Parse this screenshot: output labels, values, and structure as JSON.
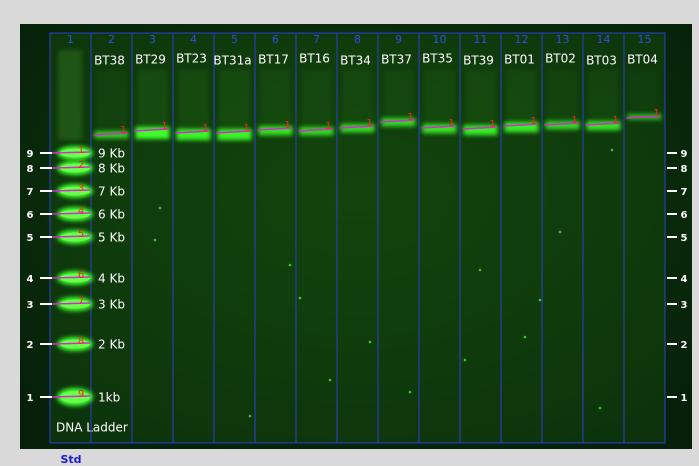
{
  "ladder": {
    "number": "1",
    "label": "DNA Ladder",
    "std": "Std",
    "bands": [
      {
        "id": "1",
        "label": "9 Kb"
      },
      {
        "id": "2",
        "label": "8 Kb"
      },
      {
        "id": "3",
        "label": "7 Kb"
      },
      {
        "id": "4",
        "label": "6 Kb"
      },
      {
        "id": "5",
        "label": "5 Kb"
      },
      {
        "id": "6",
        "label": "4 Kb"
      },
      {
        "id": "7",
        "label": "3 Kb"
      },
      {
        "id": "8",
        "label": "2 Kb"
      },
      {
        "id": "9",
        "label": "1kb"
      }
    ]
  },
  "markers": [
    "9",
    "8",
    "7",
    "6",
    "5",
    "4",
    "3",
    "2",
    "1"
  ],
  "lanes": [
    {
      "number": "2",
      "name": "BT38",
      "band": "1"
    },
    {
      "number": "3",
      "name": "BT29",
      "band": "1"
    },
    {
      "number": "4",
      "name": "BT23",
      "band": "1"
    },
    {
      "number": "5",
      "name": "BT31a",
      "band": "1"
    },
    {
      "number": "6",
      "name": "BT17",
      "band": "1"
    },
    {
      "number": "7",
      "name": "BT16",
      "band": "1"
    },
    {
      "number": "8",
      "name": "BT34",
      "band": "1"
    },
    {
      "number": "9",
      "name": "BT37",
      "band": "1"
    },
    {
      "number": "10",
      "name": "BT35",
      "band": "1"
    },
    {
      "number": "11",
      "name": "BT39",
      "band": "1"
    },
    {
      "number": "12",
      "name": "BT01",
      "band": "1"
    },
    {
      "number": "13",
      "name": "BT02",
      "band": "1"
    },
    {
      "number": "14",
      "name": "BT03",
      "band": "1"
    },
    {
      "number": "15",
      "name": "BT04",
      "band": "1"
    }
  ]
}
